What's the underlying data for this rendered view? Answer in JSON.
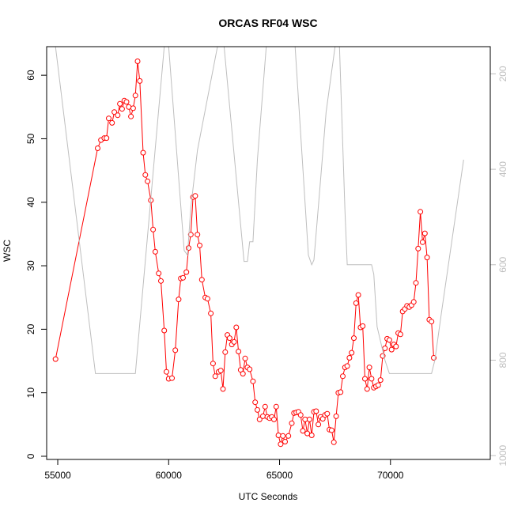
{
  "chart_data": {
    "type": "line",
    "title": "ORCAS RF04 WSC",
    "xlabel": "UTC Seconds",
    "ylabel": "WSC",
    "xlim": [
      54500,
      74500
    ],
    "ylim": [
      -0.5,
      64.5
    ],
    "x_ticks": [
      55000,
      60000,
      65000,
      70000
    ],
    "x_tick_labels": [
      "55000",
      "60000",
      "65000",
      "70000"
    ],
    "y_ticks": [
      0,
      10,
      20,
      30,
      40,
      50,
      60
    ],
    "y_tick_labels": [
      "0",
      "10",
      "20",
      "30",
      "40",
      "50",
      "60"
    ],
    "y2_reversed": true,
    "y2_lim": [
      1008,
      143
    ],
    "y2_ticks": [
      200,
      400,
      600,
      800,
      1000
    ],
    "y2_tick_labels": [
      "200",
      "400",
      "600",
      "800",
      "1000"
    ],
    "colors": {
      "series_wsc": "#ff0000",
      "series_pressure": "#bebebe",
      "axes": "#000000"
    },
    "grid": false,
    "series": [
      {
        "axis": "left",
        "style": "line+points",
        "color": "#ff0000",
        "points": [
          [
            54900,
            15.3
          ],
          [
            56800,
            48.5
          ],
          [
            56950,
            49.8
          ],
          [
            57100,
            50.1
          ],
          [
            57200,
            50.1
          ],
          [
            57300,
            53.2
          ],
          [
            57450,
            52.5
          ],
          [
            57550,
            54.2
          ],
          [
            57700,
            53.7
          ],
          [
            57800,
            55.5
          ],
          [
            57900,
            54.7
          ],
          [
            58000,
            56.0
          ],
          [
            58100,
            55.8
          ],
          [
            58200,
            55.0
          ],
          [
            58300,
            53.5
          ],
          [
            58400,
            54.8
          ],
          [
            58500,
            56.8
          ],
          [
            58600,
            62.2
          ],
          [
            58700,
            59.1
          ],
          [
            58850,
            47.8
          ],
          [
            58950,
            44.3
          ],
          [
            59050,
            43.3
          ],
          [
            59200,
            40.3
          ],
          [
            59300,
            35.7
          ],
          [
            59400,
            32.2
          ],
          [
            59550,
            28.8
          ],
          [
            59650,
            27.6
          ],
          [
            59800,
            19.8
          ],
          [
            59900,
            13.3
          ],
          [
            60000,
            12.2
          ],
          [
            60150,
            12.3
          ],
          [
            60300,
            16.7
          ],
          [
            60450,
            24.7
          ],
          [
            60550,
            28.0
          ],
          [
            60650,
            28.1
          ],
          [
            60800,
            29.0
          ],
          [
            60900,
            32.8
          ],
          [
            61000,
            34.9
          ],
          [
            61100,
            40.8
          ],
          [
            61200,
            41.0
          ],
          [
            61300,
            34.9
          ],
          [
            61400,
            33.2
          ],
          [
            61500,
            27.8
          ],
          [
            61650,
            25.0
          ],
          [
            61750,
            24.8
          ],
          [
            61900,
            22.5
          ],
          [
            62000,
            14.6
          ],
          [
            62100,
            12.6
          ],
          [
            62250,
            13.3
          ],
          [
            62350,
            13.5
          ],
          [
            62450,
            10.6
          ],
          [
            62550,
            16.4
          ],
          [
            62650,
            19.1
          ],
          [
            62750,
            18.6
          ],
          [
            62850,
            17.6
          ],
          [
            62950,
            18.0
          ],
          [
            63050,
            20.3
          ],
          [
            63150,
            16.5
          ],
          [
            63250,
            13.6
          ],
          [
            63350,
            13.0
          ],
          [
            63450,
            15.4
          ],
          [
            63550,
            14.0
          ],
          [
            63650,
            13.7
          ],
          [
            63800,
            11.8
          ],
          [
            63900,
            8.5
          ],
          [
            64000,
            7.3
          ],
          [
            64100,
            5.8
          ],
          [
            64250,
            6.3
          ],
          [
            64350,
            7.8
          ],
          [
            64450,
            6.2
          ],
          [
            64550,
            6.0
          ],
          [
            64650,
            6.2
          ],
          [
            64750,
            5.8
          ],
          [
            64850,
            7.8
          ],
          [
            64950,
            3.3
          ],
          [
            65050,
            1.9
          ],
          [
            65150,
            3.2
          ],
          [
            65250,
            2.3
          ],
          [
            65400,
            3.2
          ],
          [
            65550,
            5.2
          ],
          [
            65650,
            6.8
          ],
          [
            65750,
            6.9
          ],
          [
            65850,
            7.0
          ],
          [
            65950,
            6.5
          ],
          [
            66050,
            4.0
          ],
          [
            66150,
            5.8
          ],
          [
            66250,
            3.6
          ],
          [
            66350,
            5.8
          ],
          [
            66450,
            3.3
          ],
          [
            66550,
            7.0
          ],
          [
            66650,
            7.1
          ],
          [
            66750,
            5.0
          ],
          [
            66850,
            6.2
          ],
          [
            66950,
            5.9
          ],
          [
            67050,
            6.5
          ],
          [
            67150,
            6.7
          ],
          [
            67250,
            4.2
          ],
          [
            67350,
            4.1
          ],
          [
            67450,
            2.2
          ],
          [
            67550,
            6.3
          ],
          [
            67650,
            10.0
          ],
          [
            67750,
            10.1
          ],
          [
            67850,
            12.6
          ],
          [
            67950,
            14.0
          ],
          [
            68050,
            14.2
          ],
          [
            68150,
            15.5
          ],
          [
            68250,
            16.3
          ],
          [
            68350,
            18.6
          ],
          [
            68450,
            24.1
          ],
          [
            68550,
            25.4
          ],
          [
            68650,
            20.3
          ],
          [
            68750,
            20.5
          ],
          [
            68850,
            12.2
          ],
          [
            68950,
            10.6
          ],
          [
            69050,
            14.0
          ],
          [
            69150,
            12.2
          ],
          [
            69250,
            10.8
          ],
          [
            69350,
            11.0
          ],
          [
            69450,
            11.2
          ],
          [
            69550,
            12.0
          ],
          [
            69650,
            15.8
          ],
          [
            69750,
            17.0
          ],
          [
            69850,
            18.5
          ],
          [
            69950,
            18.3
          ],
          [
            70050,
            16.8
          ],
          [
            70150,
            17.6
          ],
          [
            70250,
            17.3
          ],
          [
            70350,
            19.4
          ],
          [
            70450,
            19.2
          ],
          [
            70550,
            22.8
          ],
          [
            70650,
            23.2
          ],
          [
            70750,
            23.7
          ],
          [
            70850,
            23.5
          ],
          [
            70950,
            23.8
          ],
          [
            71050,
            24.3
          ],
          [
            71150,
            27.3
          ],
          [
            71250,
            32.7
          ],
          [
            71350,
            38.5
          ],
          [
            71450,
            33.7
          ],
          [
            71550,
            35.1
          ],
          [
            71650,
            31.3
          ],
          [
            71750,
            21.5
          ],
          [
            71850,
            21.2
          ],
          [
            71950,
            15.5
          ]
        ]
      },
      {
        "axis": "right",
        "style": "line",
        "color": "#bebebe",
        "points": [
          [
            54900,
            143
          ],
          [
            56700,
            828
          ],
          [
            58500,
            828
          ],
          [
            59800,
            143
          ],
          [
            60000,
            143
          ],
          [
            60700,
            570
          ],
          [
            60850,
            580
          ],
          [
            61000,
            480
          ],
          [
            61300,
            360
          ],
          [
            62200,
            143
          ],
          [
            62500,
            143
          ],
          [
            63400,
            593
          ],
          [
            63550,
            593
          ],
          [
            63650,
            552
          ],
          [
            63800,
            552
          ],
          [
            64000,
            380
          ],
          [
            64400,
            143
          ],
          [
            65700,
            143
          ],
          [
            66300,
            580
          ],
          [
            66450,
            600
          ],
          [
            66550,
            590
          ],
          [
            66800,
            450
          ],
          [
            67100,
            280
          ],
          [
            67500,
            143
          ],
          [
            67700,
            143
          ],
          [
            67950,
            490
          ],
          [
            68050,
            600
          ],
          [
            69150,
            600
          ],
          [
            69250,
            620
          ],
          [
            69400,
            730
          ],
          [
            69750,
            800
          ],
          [
            69950,
            828
          ],
          [
            71850,
            828
          ],
          [
            72000,
            800
          ],
          [
            72300,
            700
          ],
          [
            73300,
            380
          ]
        ]
      }
    ]
  }
}
